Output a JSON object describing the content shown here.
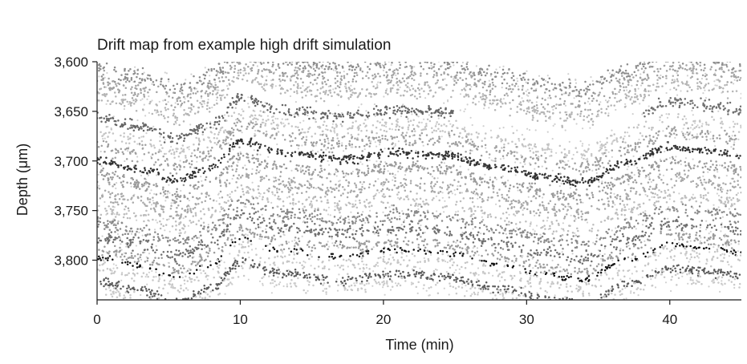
{
  "chart_data": {
    "type": "scatter",
    "title": "Drift map from example high drift simulation",
    "xlabel": "Time (min)",
    "ylabel": "Depth (μm)",
    "xlim": [
      0,
      45
    ],
    "ylim": [
      3600,
      3840
    ],
    "y_inverted": true,
    "grid": false,
    "legend": "none",
    "x_ticks": [
      0,
      10,
      20,
      30,
      40
    ],
    "x_tick_labels": [
      "0",
      "10",
      "20",
      "30",
      "40"
    ],
    "y_ticks": [
      3600,
      3650,
      3700,
      3750,
      3800
    ],
    "y_tick_labels": [
      "3,600",
      "3,650",
      "3,700",
      "3,750",
      "3,800"
    ],
    "drift_trace": {
      "time_min": [
        0,
        3,
        5.5,
        8,
        10,
        13,
        17,
        21,
        24,
        28,
        31,
        34,
        37,
        40,
        43,
        45
      ],
      "offset_um": [
        0,
        8,
        20,
        6,
        -20,
        -8,
        -2,
        -8,
        -6,
        6,
        16,
        22,
        2,
        -14,
        -10,
        -6
      ]
    },
    "unit_bands": [
      {
        "depth_um": 3607,
        "spread_um": 6,
        "gray": "#8c8c8c",
        "density": 1.0
      },
      {
        "depth_um": 3620,
        "spread_um": 7,
        "gray": "#a3a3a3",
        "density": 1.0
      },
      {
        "depth_um": 3635,
        "spread_um": 6,
        "gray": "#b5b5b5",
        "density": 0.9
      },
      {
        "depth_um": 3657,
        "spread_um": 4,
        "gray": "#666666",
        "density": 1.1,
        "time_range": [
          0,
          25
        ]
      },
      {
        "depth_um": 3655,
        "spread_um": 4,
        "gray": "#6e6e6e",
        "density": 1.0,
        "time_range": [
          38,
          45
        ]
      },
      {
        "depth_um": 3672,
        "spread_um": 6,
        "gray": "#c4c4c4",
        "density": 0.7
      },
      {
        "depth_um": 3685,
        "spread_um": 6,
        "gray": "#a0a0a0",
        "density": 0.9
      },
      {
        "depth_um": 3700,
        "spread_um": 3,
        "gray": "#333333",
        "density": 1.1
      },
      {
        "depth_um": 3715,
        "spread_um": 5,
        "gray": "#9a9a9a",
        "density": 1.0
      },
      {
        "depth_um": 3732,
        "spread_um": 6,
        "gray": "#a8a8a8",
        "density": 1.0
      },
      {
        "depth_um": 3748,
        "spread_um": 6,
        "gray": "#bdbdbd",
        "density": 0.7
      },
      {
        "depth_um": 3762,
        "spread_um": 5,
        "gray": "#8a8a8a",
        "density": 0.9
      },
      {
        "depth_um": 3776,
        "spread_um": 5,
        "gray": "#6f6f6f",
        "density": 0.9
      },
      {
        "depth_um": 3790,
        "spread_um": 5,
        "gray": "#9b9b9b",
        "density": 0.8
      },
      {
        "depth_um": 3798,
        "spread_um": 2,
        "gray": "#111111",
        "density": 0.35
      },
      {
        "depth_um": 3807,
        "spread_um": 6,
        "gray": "#c6c6c6",
        "density": 0.6
      },
      {
        "depth_um": 3822,
        "spread_um": 3,
        "gray": "#5a5a5a",
        "density": 0.9
      },
      {
        "depth_um": 3830,
        "spread_um": 5,
        "gray": "#c9c9c9",
        "density": 0.5
      }
    ]
  }
}
